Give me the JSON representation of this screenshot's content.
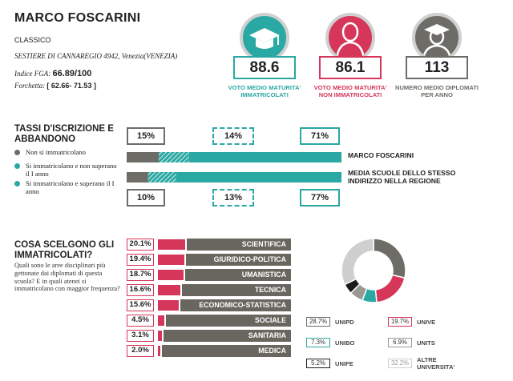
{
  "school": {
    "name": "MARCO FOSCARINI",
    "type": "CLASSICO",
    "address": "SESTIERE DI CANNAREGIO 4942, Venezia(VENEZIA)",
    "fga_label": "Indice FGA:",
    "fga_value": "66.89/100",
    "forchetta_label": "Forchetta:",
    "forchetta_value": "[ 62.66- 71.53 ]"
  },
  "stats": [
    {
      "value": "88.6",
      "label": "VOTO MEDIO MATURITA' IMMATRICOLATI",
      "color": "#2aa8a3",
      "icon": "graduation-cap-icon"
    },
    {
      "value": "86.1",
      "label": "VOTO MEDIO MATURITA' NON IMMATRICOLATI",
      "color": "#d6365a",
      "icon": "person-icon"
    },
    {
      "value": "113",
      "label": "NUMERO MEDIO DIPLOMATI PER ANNO",
      "color": "#6e6c66",
      "icon": "graduate-person-icon"
    }
  ],
  "enrollment": {
    "title": "TASSI D'ISCRIZIONE E ABBANDONO",
    "legend": [
      {
        "label": "Non si immatricolano",
        "color": "#6e6c66"
      },
      {
        "label": "Si immatricolano e non superano il I anno",
        "color": "#2aa8a3"
      },
      {
        "label": "Si immatricolano e superano il I anno",
        "color": "#2aa8a3"
      }
    ],
    "school_pcts": [
      "15%",
      "14%",
      "71%"
    ],
    "region_pcts": [
      "10%",
      "13%",
      "77%"
    ],
    "school_bar_label": "MARCO FOSCARINI",
    "region_bar_label": "MEDIA SCUOLE DELLO STESSO INDIRIZZO NELLA REGIONE",
    "school_split": [
      0.15,
      0.14,
      0.71
    ],
    "region_split": [
      0.1,
      0.13,
      0.77
    ]
  },
  "choices": {
    "title": "COSA SCELGONO GLI IMMATRICOLATI?",
    "subtitle": "Quali sono le aree disciplinari più gettonate dai diplomati di questa scuola? E in quali atenei si immatricolano con maggior frequenza?",
    "areas": [
      {
        "pct": "20.1%",
        "label": "SCIENTIFICA",
        "value": 20.1
      },
      {
        "pct": "19.4%",
        "label": "GIURIDICO-POLITICA",
        "value": 19.4
      },
      {
        "pct": "18.7%",
        "label": "UMANISTICA",
        "value": 18.7
      },
      {
        "pct": "16.6%",
        "label": "TECNICA",
        "value": 16.6
      },
      {
        "pct": "15.6%",
        "label": "ECONOMICO-STATISTICA",
        "value": 15.6
      },
      {
        "pct": "4.5%",
        "label": "SOCIALE",
        "value": 4.5
      },
      {
        "pct": "3.1%",
        "label": "SANITARIA",
        "value": 3.1
      },
      {
        "pct": "2.0%",
        "label": "MEDICA",
        "value": 2.0
      }
    ],
    "universities": [
      {
        "pct": "28.7%",
        "name": "UNIPD",
        "color": "#6e6c66",
        "value": 28.7
      },
      {
        "pct": "19.7%",
        "name": "UNIVE",
        "color": "#d6365a",
        "value": 19.7
      },
      {
        "pct": "7.3%",
        "name": "UNIBO",
        "color": "#2aa8a3",
        "value": 7.3
      },
      {
        "pct": "6.9%",
        "name": "UNITS",
        "color": "#9a9893",
        "value": 6.9
      },
      {
        "pct": "5.2%",
        "name": "UNIFE",
        "color": "#1c1c1c",
        "value": 5.2
      },
      {
        "pct": "32.2%",
        "name": "ALTRE UNIVERSITA'",
        "color": "#cfcfcf",
        "value": 32.2
      }
    ]
  }
}
